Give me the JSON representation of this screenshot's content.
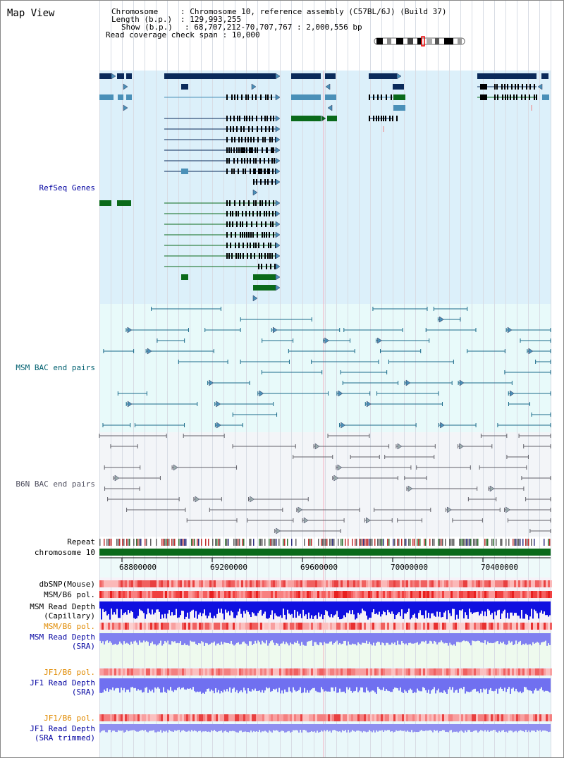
{
  "view": {
    "title": "Map View",
    "chromosome_label": "Chromosome",
    "chromosome_value": "Chromosome 10, reference assembly (C57BL/6J) (Build 37)",
    "length_label": "Length (b.p.)",
    "length_value": "129,993,255",
    "show_label": "Show (b.p.)",
    "show_value": "68,707,212-70,707,767 : 2,000,556 bp",
    "coverage_label": "Read coverage check span",
    "coverage_value": "10,000"
  },
  "tracks": {
    "refseq": "RefSeq Genes",
    "msm_bac": "MSM BAC end pairs",
    "b6n_bac": "B6N BAC end pairs",
    "repeat": "Repeat",
    "chromosome": "chromosome 10",
    "dbsnp": "dbSNP(Mouse)",
    "msm_b6_pol": "MSM/B6 pol.",
    "msm_depth_cap_1": "MSM Read Depth",
    "msm_depth_cap_2": "(Capillary)",
    "msm_b6_pol_2": "MSM/B6 pol.",
    "msm_depth_sra_1": "MSM Read Depth",
    "msm_depth_sra_2": "(SRA)",
    "jf1_b6_pol": "JF1/B6 pol.",
    "jf1_depth_1": "JF1 Read Depth",
    "jf1_depth_2": "(SRA)",
    "jf1_b6_pol_2": "JF1/B6 pol.",
    "jf1_trim_1": "JF1 Read Depth",
    "jf1_trim_2": "(SRA trimmed)"
  },
  "ruler": {
    "ticks": [
      "68800000",
      "69200000",
      "69600000",
      "70000000",
      "70400000"
    ]
  },
  "colors": {
    "refseq_bg": "#dcf0fa",
    "bac_bg": "#e8fafa",
    "b6n_bg": "#f3f5f8",
    "navy": "#0a2a5a",
    "steel": "#4a90b8",
    "green": "#0a6a1a",
    "orange_label": "#e08a00",
    "blue_label": "#0000a0",
    "teal_label": "#006070"
  }
}
